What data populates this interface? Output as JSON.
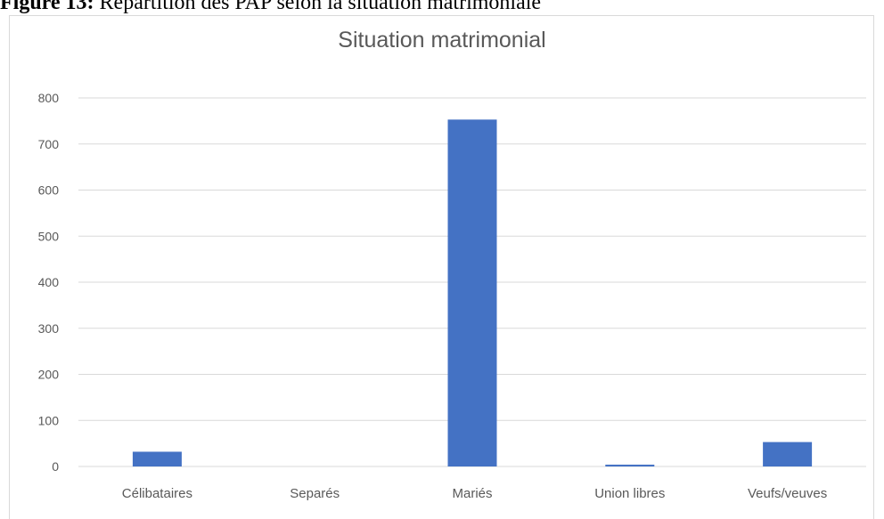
{
  "figure_caption": {
    "label": "Figure 13:",
    "text": "Répartition des PAP selon la situation matrimoniale"
  },
  "chart_data": {
    "type": "bar",
    "title": "Situation matrimonial",
    "categories": [
      "Célibataires",
      "Separés",
      "Mariés",
      "Union libres",
      "Veufs/veuves"
    ],
    "values": [
      32,
      0,
      753,
      4,
      53
    ],
    "ylim": [
      0,
      800
    ],
    "yticks": [
      0,
      100,
      200,
      300,
      400,
      500,
      600,
      700,
      800
    ],
    "xlabel": "",
    "ylabel": "",
    "grid": true,
    "bar_color": "#4472c4",
    "grid_color": "#d9d9d9"
  }
}
